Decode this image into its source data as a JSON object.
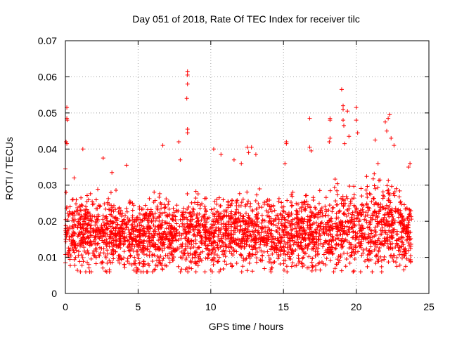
{
  "chart_data": {
    "type": "scatter",
    "title": "Day 051 of 2018, Rate Of TEC Index for receiver tilc",
    "xlabel": "GPS time / hours",
    "ylabel": "ROTI / TECUs",
    "xlim": [
      0,
      25
    ],
    "ylim": [
      0,
      0.07
    ],
    "x_ticks": [
      "0",
      "5",
      "10",
      "15",
      "20",
      "25"
    ],
    "y_ticks": [
      "0",
      "0.01",
      "0.02",
      "0.03",
      "0.04",
      "0.05",
      "0.06",
      "0.07"
    ],
    "grid": true,
    "legend": "none",
    "marker": "+",
    "color": "#ff0000",
    "data_summary": {
      "x_range_hours": [
        0,
        23.8
      ],
      "typical_roti_range": [
        0.006,
        0.035
      ],
      "approx_point_count": 3000
    },
    "series": [
      {
        "points": [
          [
            0.1,
            0.0515
          ],
          [
            0.1,
            0.0485
          ],
          [
            0.12,
            0.048
          ],
          [
            0.05,
            0.042
          ],
          [
            0.1,
            0.0415
          ],
          [
            0.0,
            0.0345
          ],
          [
            0.05,
            0.028
          ],
          [
            1.2,
            0.04
          ],
          [
            0.6,
            0.032
          ],
          [
            2.6,
            0.0375
          ],
          [
            3.2,
            0.0335
          ],
          [
            4.2,
            0.0355
          ],
          [
            6.7,
            0.041
          ],
          [
            7.8,
            0.042
          ],
          [
            7.9,
            0.037
          ],
          [
            8.4,
            0.0615
          ],
          [
            8.4,
            0.0605
          ],
          [
            8.4,
            0.058
          ],
          [
            8.35,
            0.054
          ],
          [
            8.4,
            0.0455
          ],
          [
            8.4,
            0.0445
          ],
          [
            10.2,
            0.04
          ],
          [
            10.7,
            0.0385
          ],
          [
            11.6,
            0.037
          ],
          [
            12.1,
            0.036
          ],
          [
            12.5,
            0.0405
          ],
          [
            12.6,
            0.039
          ],
          [
            12.8,
            0.0405
          ],
          [
            13.1,
            0.0385
          ],
          [
            15.2,
            0.042
          ],
          [
            15.2,
            0.0415
          ],
          [
            15.1,
            0.036
          ],
          [
            16.8,
            0.0485
          ],
          [
            16.8,
            0.0405
          ],
          [
            16.9,
            0.0395
          ],
          [
            18.2,
            0.0485
          ],
          [
            18.2,
            0.048
          ],
          [
            18.2,
            0.043
          ],
          [
            18.15,
            0.042
          ],
          [
            19.0,
            0.0565
          ],
          [
            19.1,
            0.052
          ],
          [
            19.1,
            0.051
          ],
          [
            19.1,
            0.048
          ],
          [
            19.15,
            0.0465
          ],
          [
            19.2,
            0.0415
          ],
          [
            19.4,
            0.0505
          ],
          [
            19.5,
            0.0435
          ],
          [
            20.0,
            0.0515
          ],
          [
            20.0,
            0.048
          ],
          [
            20.1,
            0.0445
          ],
          [
            21.3,
            0.0425
          ],
          [
            21.5,
            0.036
          ],
          [
            22.0,
            0.0475
          ],
          [
            22.1,
            0.045
          ],
          [
            22.2,
            0.0485
          ],
          [
            22.3,
            0.0495
          ],
          [
            22.4,
            0.043
          ],
          [
            22.6,
            0.041
          ],
          [
            23.7,
            0.036
          ],
          [
            23.6,
            0.035
          ],
          [
            5.0,
            0.0065
          ],
          [
            5.2,
            0.006
          ],
          [
            6.1,
            0.0065
          ],
          [
            9.6,
            0.006
          ],
          [
            10.0,
            0.0065
          ],
          [
            1.4,
            0.006
          ],
          [
            21.1,
            0.006
          ],
          [
            22.8,
            0.0075
          ],
          [
            23.4,
            0.0075
          ],
          [
            0.0,
            0.0085
          ]
        ]
      }
    ]
  }
}
